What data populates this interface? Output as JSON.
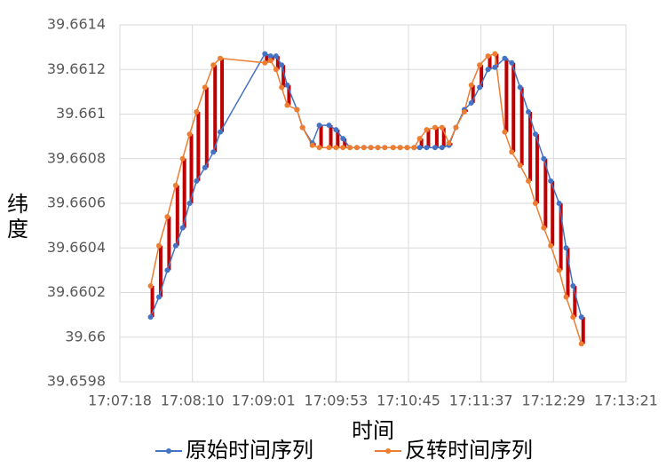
{
  "chart_data": {
    "type": "line",
    "x_label": "时间",
    "y_label": "纬度",
    "x": [
      61660,
      61666,
      61672,
      61678,
      61683,
      61688,
      61693,
      61699,
      61705,
      61710,
      61742,
      61746,
      61750,
      61754,
      61758,
      61765,
      61769,
      61776,
      61781,
      61788,
      61793,
      61798,
      61803,
      61808,
      61813,
      61818,
      61823,
      61828,
      61834,
      61839,
      61844,
      61849,
      61853,
      61858,
      61864,
      61869,
      61874,
      61879,
      61885,
      61890,
      61896,
      61902,
      61907,
      61914,
      61919,
      61925,
      61931,
      61936,
      61942,
      61947,
      61953,
      61958,
      61963,
      61969
    ],
    "series": [
      {
        "name": "原始时间序列",
        "color": "#4472c4",
        "values": [
          39.66009,
          39.66018,
          39.6603,
          39.66041,
          39.66049,
          39.6606,
          39.6607,
          39.66076,
          39.66083,
          39.66092,
          39.66127,
          39.66126,
          39.66126,
          39.66122,
          39.66113,
          39.66102,
          39.66094,
          39.66087,
          39.66095,
          39.66095,
          39.66093,
          39.66089,
          39.66085,
          39.66085,
          39.66085,
          39.66085,
          39.66085,
          39.66085,
          39.66085,
          39.66085,
          39.66085,
          39.66085,
          39.66085,
          39.66085,
          39.66085,
          39.66085,
          39.66086,
          39.66094,
          39.66102,
          39.66105,
          39.66112,
          39.6612,
          39.66121,
          39.66125,
          39.66123,
          39.66112,
          39.66101,
          39.66091,
          39.6608,
          39.6607,
          39.6606,
          39.6604,
          39.66023,
          39.66009
        ]
      },
      {
        "name": "反转时间序列",
        "color": "#ed7d31",
        "values": [
          39.66023,
          39.66041,
          39.66054,
          39.66068,
          39.6608,
          39.66091,
          39.66101,
          39.66112,
          39.66122,
          39.66125,
          39.66123,
          39.66124,
          39.6612,
          39.66112,
          39.66104,
          39.66102,
          39.66094,
          39.66086,
          39.66085,
          39.66085,
          39.66085,
          39.66085,
          39.66085,
          39.66085,
          39.66085,
          39.66085,
          39.66085,
          39.66085,
          39.66085,
          39.66085,
          39.66085,
          39.66085,
          39.66089,
          39.66093,
          39.66094,
          39.66094,
          39.66087,
          39.66094,
          39.66101,
          39.66113,
          39.66122,
          39.66126,
          39.66127,
          39.66092,
          39.66083,
          39.66077,
          39.6607,
          39.6606,
          39.66049,
          39.66041,
          39.6603,
          39.66018,
          39.66009,
          39.65997
        ]
      }
    ],
    "diff_color": "#c00000",
    "xlim": [
      61638,
      62001
    ],
    "xticks": [
      {
        "value": 61638,
        "label": "17:07:18"
      },
      {
        "value": 61690,
        "label": "17:08:10"
      },
      {
        "value": 61741,
        "label": "17:09:01"
      },
      {
        "value": 61793,
        "label": "17:09:53"
      },
      {
        "value": 61845,
        "label": "17:10:45"
      },
      {
        "value": 61897,
        "label": "17:11:37"
      },
      {
        "value": 61949,
        "label": "17:12:29"
      },
      {
        "value": 62001,
        "label": "17:13:21"
      }
    ],
    "ylim": [
      39.6598,
      39.6614
    ],
    "yticks": [
      39.6598,
      39.66,
      39.6602,
      39.6604,
      39.6606,
      39.6608,
      39.661,
      39.6612,
      39.6614
    ],
    "grid": true,
    "legend": "bottom"
  }
}
